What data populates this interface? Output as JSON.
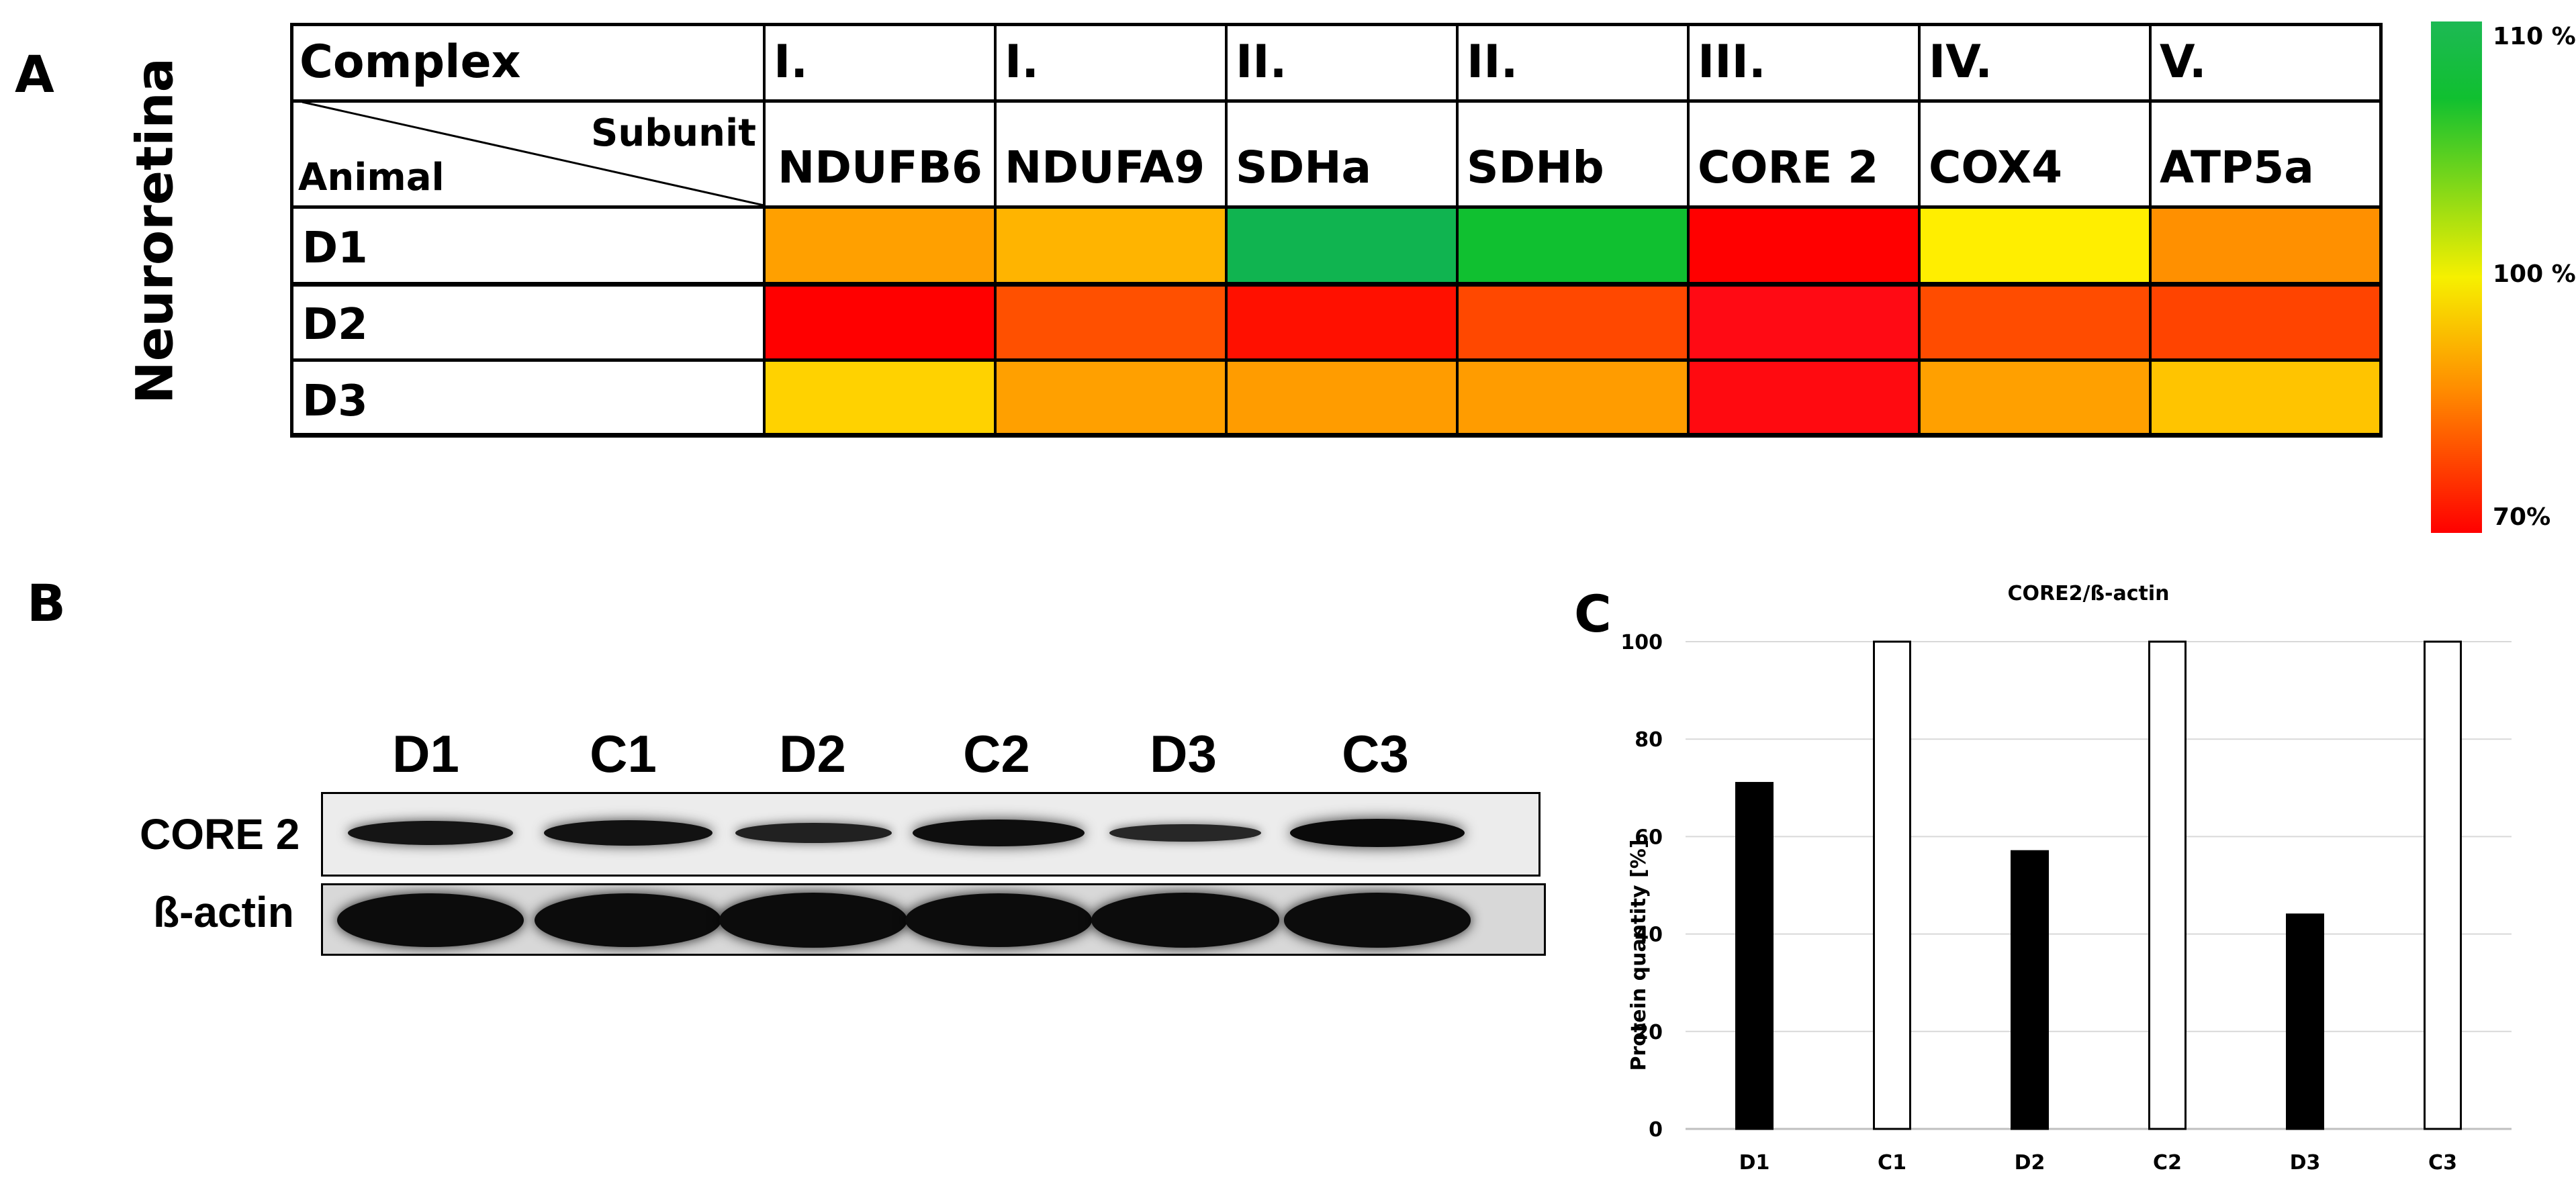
{
  "panels": {
    "a": "A",
    "b": "B",
    "c": "C"
  },
  "panel_a": {
    "side_label": "Neuroretina",
    "complex_header": "Complex",
    "subunit_header": "Subunit",
    "animal_header": "Animal",
    "complexes": [
      "I.",
      "I.",
      "II.",
      "II.",
      "III.",
      "IV.",
      "V."
    ],
    "subunits": [
      "NDUFB6",
      "NDUFA9",
      "SDHa",
      "SDHb",
      "CORE 2",
      "COX4",
      "ATP5a"
    ],
    "rows": [
      {
        "label": "D1",
        "colors": [
          "#ffa000",
          "#ffb400",
          "#10b450",
          "#10c030",
          "#ff0000",
          "#ffee00",
          "#ff9000"
        ]
      },
      {
        "label": "D2",
        "colors": [
          "#ff0000",
          "#ff5000",
          "#ff1000",
          "#ff4800",
          "#ff0a14",
          "#ff4c00",
          "#ff4400"
        ]
      },
      {
        "label": "D3",
        "colors": [
          "#ffd200",
          "#ffa000",
          "#ff9c00",
          "#ff9c00",
          "#ff0a10",
          "#ffa000",
          "#ffc400"
        ]
      }
    ],
    "legend": {
      "top": "110 %",
      "mid": "100 %",
      "bottom": "70%"
    }
  },
  "panel_b": {
    "lanes": [
      "D1",
      "C1",
      "D2",
      "C2",
      "D3",
      "C3"
    ],
    "row_labels": [
      "CORE 2",
      "ß-actin"
    ],
    "core2_intensity": [
      0.78,
      0.85,
      0.55,
      0.92,
      0.42,
      1.0
    ],
    "actin_intensity": [
      0.95,
      0.92,
      0.97,
      0.93,
      0.98,
      0.96
    ]
  },
  "chart_data": {
    "type": "bar",
    "title": "CORE2/ß-actin",
    "ylabel": "Protein quantity [%]",
    "xlabel": "",
    "categories": [
      "D1",
      "C1",
      "D2",
      "C2",
      "D3",
      "C3"
    ],
    "values": [
      71,
      100,
      57,
      100,
      44,
      100
    ],
    "fills": [
      "#000000",
      "#ffffff",
      "#000000",
      "#ffffff",
      "#000000",
      "#ffffff"
    ],
    "ylim": [
      0,
      100
    ],
    "yticks": [
      0,
      20,
      40,
      60,
      80,
      100
    ],
    "grid": true
  }
}
